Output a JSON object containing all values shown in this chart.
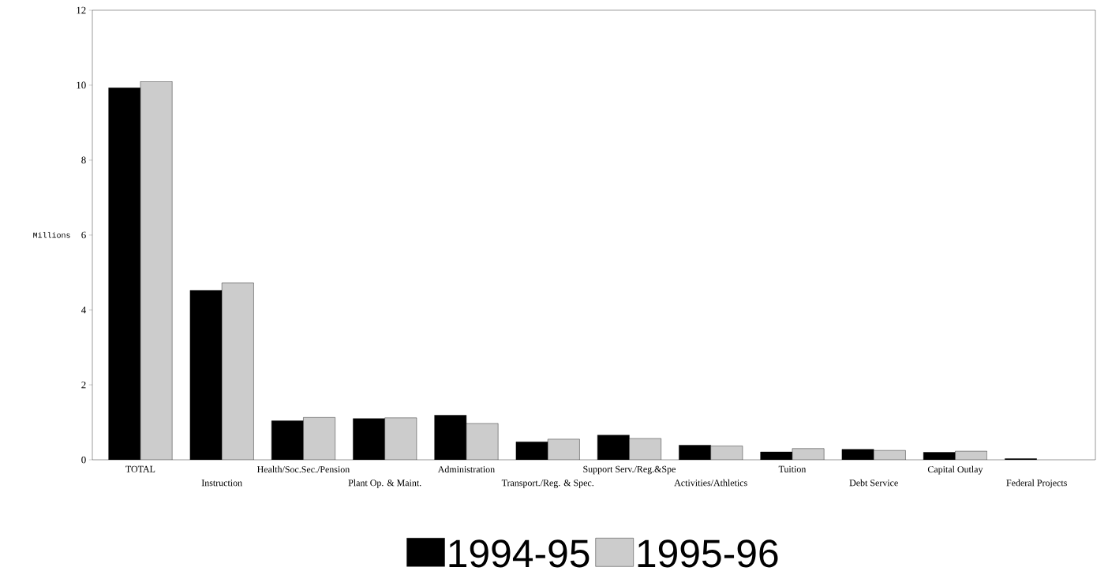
{
  "chart_data": {
    "type": "bar",
    "ylabel": "Millions",
    "categories": [
      "TOTAL",
      "Instruction",
      "Health/Soc.Sec./Pension",
      "Plant Op. & Maint.",
      "Administration",
      "Transport./Reg. & Spec.",
      "Support Serv./Reg.&Spe",
      "Activities/Athletics",
      "Tuition",
      "Debt Service",
      "Capital Outlay",
      "Federal Projects"
    ],
    "series": [
      {
        "name": "1994-95",
        "color": "#000000",
        "values": [
          9.93,
          4.52,
          1.04,
          1.1,
          1.19,
          0.48,
          0.66,
          0.39,
          0.21,
          0.28,
          0.2,
          0.03
        ]
      },
      {
        "name": "1995-96",
        "color": "#cccccc",
        "values": [
          10.1,
          4.72,
          1.13,
          1.12,
          0.97,
          0.55,
          0.57,
          0.37,
          0.3,
          0.25,
          0.23,
          null
        ]
      }
    ],
    "ylim": [
      0,
      12
    ],
    "yticks": [
      0,
      2,
      4,
      6,
      8,
      10,
      12
    ],
    "grid": false,
    "legend": "bottom"
  }
}
